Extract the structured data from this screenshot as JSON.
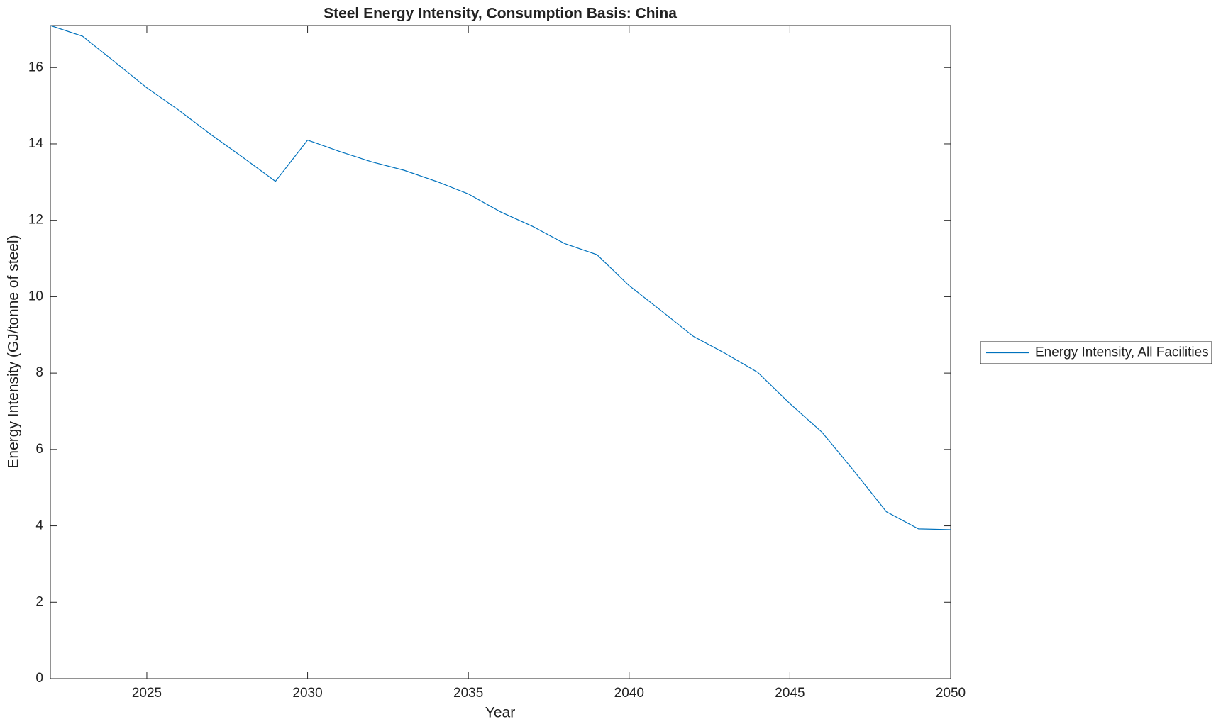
{
  "chart_data": {
    "type": "line",
    "title": "Steel Energy Intensity, Consumption Basis: China",
    "x_label": "Year",
    "y_label": "Energy Intensity (GJ/tonne of steel)",
    "x": [
      2022,
      2023,
      2024,
      2025,
      2026,
      2027,
      2028,
      2029,
      2030,
      2031,
      2032,
      2033,
      2034,
      2035,
      2036,
      2037,
      2038,
      2039,
      2040,
      2041,
      2042,
      2043,
      2044,
      2045,
      2046,
      2047,
      2048,
      2049,
      2050
    ],
    "series": [
      {
        "name": "Energy Intensity, All Facilities",
        "color": "#0072bd",
        "values": [
          17.1,
          16.82,
          16.15,
          15.47,
          14.88,
          14.24,
          13.64,
          13.02,
          14.1,
          13.8,
          13.53,
          13.31,
          13.02,
          12.69,
          12.22,
          11.84,
          11.39,
          11.1,
          10.29,
          9.63,
          8.96,
          8.51,
          8.02,
          7.2,
          6.45,
          5.43,
          4.37,
          3.92,
          3.9
        ]
      }
    ],
    "xlim": [
      2022,
      2050
    ],
    "xticks": [
      2025,
      2030,
      2035,
      2040,
      2045,
      2050
    ],
    "ylim": [
      0,
      17.1
    ],
    "yticks": [
      0,
      2,
      4,
      6,
      8,
      10,
      12,
      14,
      16
    ],
    "legend": "outside-right"
  }
}
